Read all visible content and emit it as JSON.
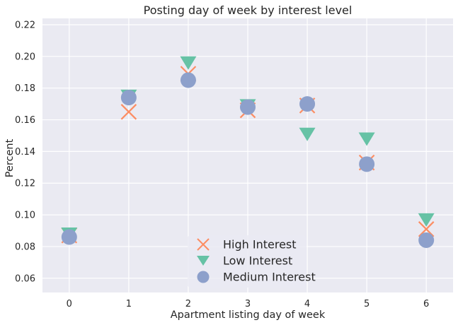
{
  "chart_data": {
    "type": "scatter",
    "title": "Posting day of week by interest level",
    "xlabel": "Apartment listing day of week",
    "ylabel": "Percent",
    "xlim": [
      -0.45,
      6.45
    ],
    "ylim": [
      0.051,
      0.224
    ],
    "x_ticks": [
      "0",
      "1",
      "2",
      "3",
      "4",
      "5",
      "6"
    ],
    "y_ticks": [
      "0.06",
      "0.08",
      "0.10",
      "0.12",
      "0.14",
      "0.16",
      "0.18",
      "0.20",
      "0.22"
    ],
    "grid": true,
    "legend_position": "lower-center",
    "x": [
      0,
      1,
      2,
      3,
      4,
      5,
      6
    ],
    "series": [
      {
        "name": "High Interest",
        "marker": "x",
        "color": "#fc8d62",
        "values": [
          0.087,
          0.165,
          0.189,
          0.166,
          0.169,
          0.133,
          0.091
        ]
      },
      {
        "name": "Low Interest",
        "marker": "triangle-down",
        "color": "#66c2a5",
        "values": [
          0.088,
          0.175,
          0.196,
          0.169,
          0.151,
          0.148,
          0.097
        ]
      },
      {
        "name": "Medium Interest",
        "marker": "circle",
        "color": "#8da0cb",
        "values": [
          0.086,
          0.174,
          0.185,
          0.168,
          0.17,
          0.132,
          0.084
        ]
      }
    ]
  }
}
